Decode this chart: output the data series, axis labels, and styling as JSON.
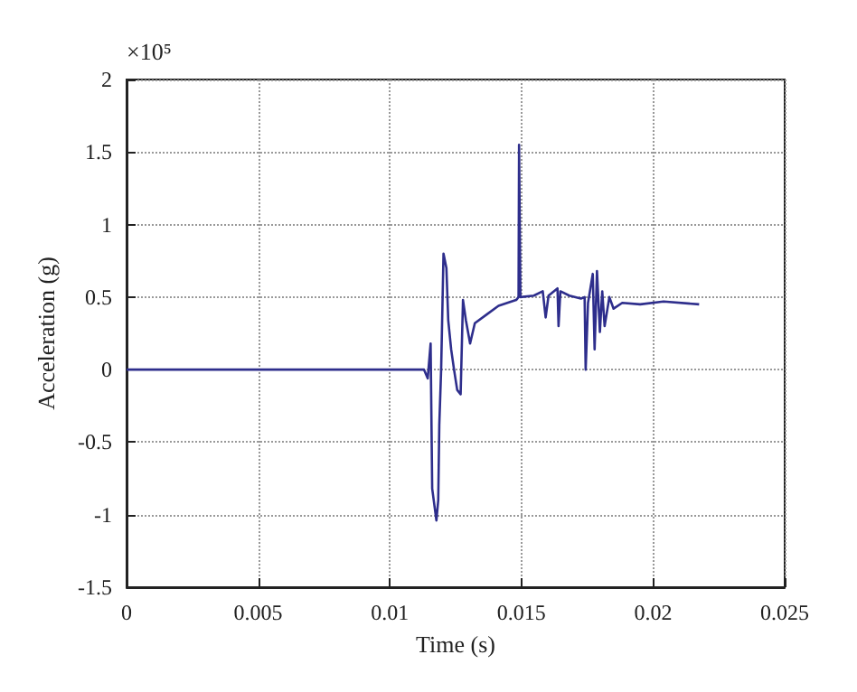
{
  "chart_data": {
    "type": "line",
    "xlabel": "Time (s)",
    "ylabel": "Acceleration (g)",
    "annotations": [
      "×10⁵"
    ],
    "x": [
      0,
      0.0113,
      0.01144,
      0.01155,
      0.01161,
      0.01177,
      0.01184,
      0.01188,
      0.01195,
      0.01204,
      0.01215,
      0.01222,
      0.01233,
      0.01244,
      0.01256,
      0.01269,
      0.01278,
      0.01289,
      0.01305,
      0.01323,
      0.01368,
      0.01413,
      0.0148,
      0.01489,
      0.01491,
      0.01496,
      0.01547,
      0.01581,
      0.01592,
      0.01603,
      0.01637,
      0.01641,
      0.01648,
      0.01682,
      0.01726,
      0.0174,
      0.01744,
      0.01753,
      0.01771,
      0.01778,
      0.01787,
      0.01798,
      0.01807,
      0.01816,
      0.01834,
      0.0185,
      0.01883,
      0.01951,
      0.0204,
      0.02175
    ],
    "series": [
      {
        "color": "#2e2e8c",
        "values": [
          0,
          0,
          -0.06,
          0.18,
          -0.82,
          -1.04,
          -0.9,
          -0.38,
          0,
          0.8,
          0.7,
          0.34,
          0.14,
          0,
          -0.14,
          -0.17,
          0.48,
          0.34,
          0.18,
          0.32,
          0.38,
          0.44,
          0.48,
          0.5,
          1.55,
          0.5,
          0.51,
          0.54,
          0.36,
          0.51,
          0.56,
          0.3,
          0.54,
          0.51,
          0.49,
          0.5,
          0,
          0.46,
          0.66,
          0.14,
          0.68,
          0.26,
          0.54,
          0.3,
          0.5,
          0.42,
          0.46,
          0.45,
          0.47,
          0.45
        ]
      }
    ],
    "xlim": [
      0,
      0.025
    ],
    "xticks": [
      0,
      0.005,
      0.01,
      0.015,
      0.02,
      0.025
    ],
    "ylim": [
      -1.5,
      2
    ],
    "yticks": [
      -1.5,
      -1,
      -0.5,
      0,
      0.5,
      1,
      1.5,
      2
    ],
    "grid": true,
    "marker": "none",
    "line_style": "solid"
  }
}
